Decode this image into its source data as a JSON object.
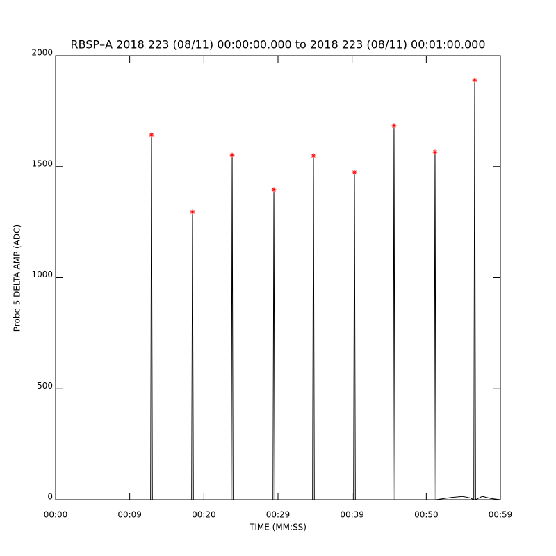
{
  "chart_data": {
    "type": "line",
    "title": "RBSP–A 2018 223 (08/11) 00:00:00.000 to 2018 223 (08/11) 00:01:00.000",
    "xlabel": "TIME (MM:SS)",
    "ylabel": "Probe 5 DELTA AMP (ADC)",
    "xlim": [
      0,
      59
    ],
    "ylim": [
      0,
      2000
    ],
    "xticks": [
      {
        "value": 0,
        "label": "00:00"
      },
      {
        "value": 9.83,
        "label": "00:09"
      },
      {
        "value": 19.67,
        "label": "00:20"
      },
      {
        "value": 29.5,
        "label": "00:29"
      },
      {
        "value": 39.33,
        "label": "00:39"
      },
      {
        "value": 49.17,
        "label": "00:50"
      },
      {
        "value": 59,
        "label": "00:59"
      }
    ],
    "yticks": [
      0,
      500,
      1000,
      1500,
      2000
    ],
    "series": [
      {
        "color": "#000000",
        "x": [
          0,
          12.6,
          12.72,
          12.84,
          18.04,
          18.16,
          18.28,
          23.3,
          23.42,
          23.54,
          28.83,
          28.95,
          29.07,
          34.08,
          34.2,
          34.32,
          39.52,
          39.64,
          39.76,
          44.77,
          44.89,
          45.01,
          50.21,
          50.33,
          50.45,
          52.5,
          54.0,
          55.0,
          55.47,
          55.59,
          55.71,
          56.6,
          57.8,
          59
        ],
        "values": [
          0,
          0,
          1643,
          0,
          0,
          1296,
          0,
          0,
          1552,
          0,
          0,
          1396,
          0,
          0,
          1549,
          0,
          0,
          1474,
          0,
          0,
          1684,
          0,
          0,
          1565,
          0,
          10,
          15,
          8,
          0,
          1890,
          0,
          15,
          5,
          0
        ]
      },
      {
        "color": "#ff0000",
        "marker": "asterisk",
        "x": [
          12.72,
          18.16,
          23.42,
          28.95,
          34.2,
          39.64,
          44.89,
          50.33,
          55.59
        ],
        "values": [
          1643,
          1296,
          1552,
          1396,
          1549,
          1474,
          1684,
          1565,
          1890
        ]
      }
    ]
  }
}
